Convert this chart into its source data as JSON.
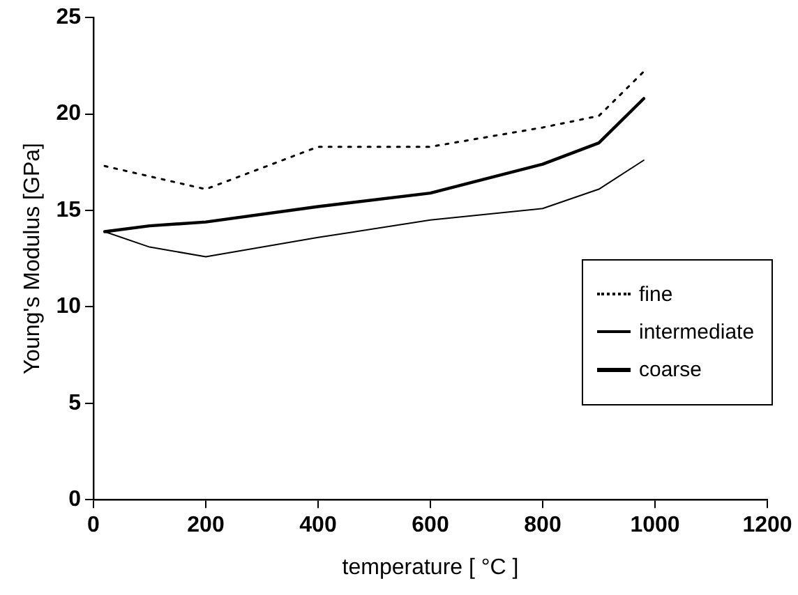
{
  "chart_data": {
    "type": "line",
    "xlabel": "temperature [ °C ]",
    "ylabel": "Young's Modulus [GPa]",
    "xlim": [
      0,
      1200
    ],
    "xticks": [
      0,
      200,
      400,
      600,
      800,
      1000,
      1200
    ],
    "ylim": [
      0,
      25
    ],
    "yticks": [
      0,
      5,
      10,
      15,
      20,
      25
    ],
    "grid": false,
    "legend": "right",
    "marker": "none",
    "series": [
      {
        "name": "fine",
        "color": "#000000",
        "line_style": "dotted",
        "x": [
          20,
          200,
          400,
          600,
          800,
          900,
          980
        ],
        "values": [
          17.3,
          16.1,
          18.3,
          18.3,
          19.3,
          19.9,
          22.2
        ]
      },
      {
        "name": "intermediate",
        "color": "#000000",
        "line_style": "solid",
        "x": [
          20,
          100,
          200,
          400,
          600,
          800,
          900,
          980
        ],
        "values": [
          13.9,
          13.1,
          12.6,
          13.6,
          14.5,
          15.1,
          16.1,
          17.6
        ]
      },
      {
        "name": "coarse",
        "color": "#000000",
        "line_style": "solid",
        "x": [
          20,
          100,
          200,
          400,
          600,
          800,
          900,
          980
        ],
        "values": [
          13.9,
          14.2,
          14.4,
          15.2,
          15.9,
          17.4,
          18.5,
          20.8
        ]
      }
    ]
  }
}
